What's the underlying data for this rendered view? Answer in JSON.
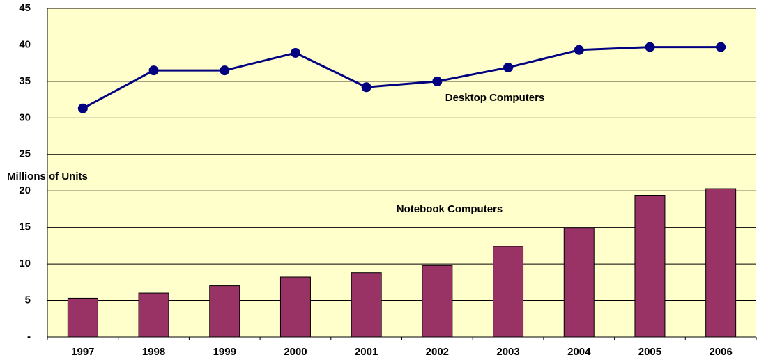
{
  "chart_data": {
    "type": "combo",
    "y_label": "Millions of Units",
    "annotations": [
      "Desktop Computers",
      "Notebook Computers"
    ],
    "categories": [
      "1997",
      "1998",
      "1999",
      "2000",
      "2001",
      "2002",
      "2003",
      "2004",
      "2005",
      "2006"
    ],
    "series": [
      {
        "name": "Desktop Computers",
        "type": "line",
        "color": "#000080",
        "values": [
          31.3,
          36.5,
          36.5,
          38.9,
          34.2,
          35.0,
          36.9,
          39.3,
          39.7,
          39.7
        ]
      },
      {
        "name": "Notebook Computers",
        "type": "bar",
        "color": "#993366",
        "values": [
          5.3,
          6.0,
          7.0,
          8.2,
          8.8,
          9.8,
          12.4,
          14.9,
          19.4,
          20.3
        ]
      }
    ],
    "ylim": [
      0,
      45
    ],
    "yticks": [
      {
        "value": 0,
        "label": "-"
      },
      5,
      10,
      15,
      20,
      25,
      30,
      35,
      40,
      45
    ],
    "grid": true,
    "background": "#ffffcc"
  }
}
